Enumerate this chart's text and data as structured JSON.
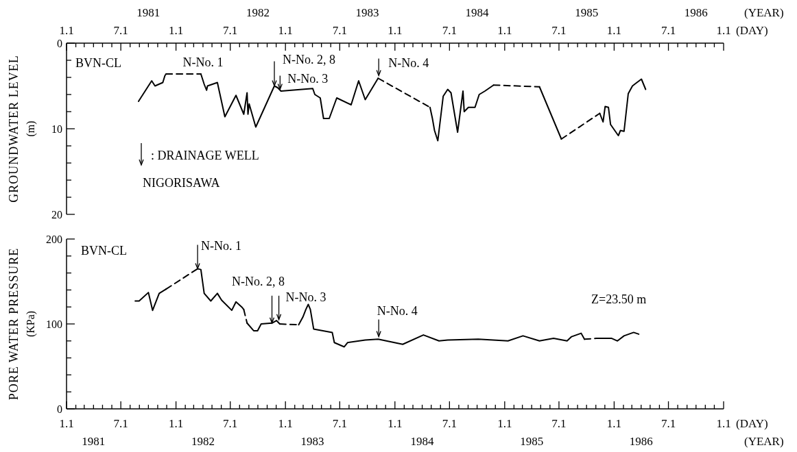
{
  "chart_data": [
    {
      "type": "line",
      "ylabel": "GROUNDWATER LEVEL (m)",
      "xlabel": "(DAY)",
      "x2label": "(YEAR)",
      "xlim": [
        "1981-01-01",
        "1987-01-01"
      ],
      "ylim": [
        20,
        0
      ],
      "yticks": [
        0,
        {
          "value": 2,
          "label": null
        },
        {
          "value": 4,
          "label": null
        },
        {
          "value": 6,
          "label": null
        },
        {
          "value": 8,
          "label": null
        },
        10,
        {
          "value": 12,
          "label": null
        },
        {
          "value": 14,
          "label": null
        },
        {
          "value": 16,
          "label": null
        },
        {
          "value": 18,
          "label": null
        },
        20
      ],
      "xticks": [
        {
          "value": "1981-01-01",
          "label": "1.1"
        },
        {
          "value": "1981-02-01",
          "label": null
        },
        {
          "value": "1981-03-01",
          "label": null
        },
        {
          "value": "1981-04-01",
          "label": null
        },
        {
          "value": "1981-05-01",
          "label": null
        },
        {
          "value": "1981-06-01",
          "label": null
        },
        {
          "value": "1981-07-01",
          "label": "7.1"
        },
        {
          "value": "1981-08-01",
          "label": null
        },
        {
          "value": "1981-09-01",
          "label": null
        },
        {
          "value": "1981-10-01",
          "label": null
        },
        {
          "value": "1981-11-01",
          "label": null
        },
        {
          "value": "1981-12-01",
          "label": null
        },
        {
          "value": "1982-01-01",
          "label": "1.1"
        },
        {
          "value": "1982-02-01",
          "label": null
        },
        {
          "value": "1982-03-01",
          "label": null
        },
        {
          "value": "1982-04-01",
          "label": null
        },
        {
          "value": "1982-05-01",
          "label": null
        },
        {
          "value": "1982-06-01",
          "label": null
        },
        {
          "value": "1982-07-01",
          "label": "7.1"
        },
        {
          "value": "1982-08-01",
          "label": null
        },
        {
          "value": "1982-09-01",
          "label": null
        },
        {
          "value": "1982-10-01",
          "label": null
        },
        {
          "value": "1982-11-01",
          "label": null
        },
        {
          "value": "1982-12-01",
          "label": null
        },
        {
          "value": "1983-01-01",
          "label": "1.1"
        },
        {
          "value": "1983-02-01",
          "label": null
        },
        {
          "value": "1983-03-01",
          "label": null
        },
        {
          "value": "1983-04-01",
          "label": null
        },
        {
          "value": "1983-05-01",
          "label": null
        },
        {
          "value": "1983-06-01",
          "label": null
        },
        {
          "value": "1983-07-01",
          "label": "7.1"
        },
        {
          "value": "1983-08-01",
          "label": null
        },
        {
          "value": "1983-09-01",
          "label": null
        },
        {
          "value": "1983-10-01",
          "label": null
        },
        {
          "value": "1983-11-01",
          "label": null
        },
        {
          "value": "1983-12-01",
          "label": null
        },
        {
          "value": "1984-01-01",
          "label": "1.1"
        },
        {
          "value": "1984-02-01",
          "label": null
        },
        {
          "value": "1984-03-01",
          "label": null
        },
        {
          "value": "1984-04-01",
          "label": null
        },
        {
          "value": "1984-05-01",
          "label": null
        },
        {
          "value": "1984-06-01",
          "label": null
        },
        {
          "value": "1984-07-01",
          "label": "7.1"
        },
        {
          "value": "1984-08-01",
          "label": null
        },
        {
          "value": "1984-09-01",
          "label": null
        },
        {
          "value": "1984-10-01",
          "label": null
        },
        {
          "value": "1984-11-01",
          "label": null
        },
        {
          "value": "1984-12-01",
          "label": null
        },
        {
          "value": "1985-01-01",
          "label": "1.1"
        },
        {
          "value": "1985-02-01",
          "label": null
        },
        {
          "value": "1985-03-01",
          "label": null
        },
        {
          "value": "1985-04-01",
          "label": null
        },
        {
          "value": "1985-05-01",
          "label": null
        },
        {
          "value": "1985-06-01",
          "label": null
        },
        {
          "value": "1985-07-01",
          "label": "7.1"
        },
        {
          "value": "1985-08-01",
          "label": null
        },
        {
          "value": "1985-09-01",
          "label": null
        },
        {
          "value": "1985-10-01",
          "label": null
        },
        {
          "value": "1985-11-01",
          "label": null
        },
        {
          "value": "1985-12-01",
          "label": null
        },
        {
          "value": "1986-01-01",
          "label": "1.1"
        },
        {
          "value": "1986-02-01",
          "label": null
        },
        {
          "value": "1986-03-01",
          "label": null
        },
        {
          "value": "1986-04-01",
          "label": null
        },
        {
          "value": "1986-05-01",
          "label": null
        },
        {
          "value": "1986-06-01",
          "label": null
        },
        {
          "value": "1986-07-01",
          "label": "7.1"
        },
        {
          "value": "1986-08-01",
          "label": null
        },
        {
          "value": "1986-09-01",
          "label": null
        },
        {
          "value": "1986-10-01",
          "label": null
        },
        {
          "value": "1986-11-01",
          "label": null
        },
        {
          "value": "1986-12-01",
          "label": null
        },
        {
          "value": "1987-01-01",
          "label": "1.1"
        }
      ],
      "x2lim": [
        "1981-01-01",
        "1987-01-01"
      ],
      "x2ticks": [
        {
          "value": "1981-10-01",
          "label": "1981"
        },
        {
          "value": "1982-10-01",
          "label": "1982"
        },
        {
          "value": "1983-10-01",
          "label": "1983"
        },
        {
          "value": "1984-10-01",
          "label": "1984"
        },
        {
          "value": "1985-10-01",
          "label": "1985"
        },
        {
          "value": "1986-10-01",
          "label": "1986"
        }
      ],
      "series": [
        {
          "color": "#000000",
          "line_style": "solid",
          "x": [
            "1981-08-29",
            "1981-10-12",
            "1981-10-23",
            "1981-11-18",
            "1981-11-25",
            "1981-11-29"
          ],
          "values": [
            6.8,
            4.4,
            5.0,
            4.6,
            3.8,
            3.6
          ]
        },
        {
          "color": "#000000",
          "line_style": "dashed",
          "x": [
            "1981-11-29",
            "1982-03-25"
          ],
          "values": [
            3.6,
            3.6
          ]
        },
        {
          "color": "#000000",
          "line_style": "solid",
          "x": [
            "1982-03-25",
            "1982-04-05",
            "1982-04-13",
            "1982-04-16",
            "1982-05-19",
            "1982-06-13",
            "1982-07-20",
            "1982-08-15",
            "1982-08-26",
            "1982-08-29",
            "1982-09-02",
            "1982-09-24",
            "1982-11-25",
            "1982-12-06",
            "1982-12-17",
            "1983-04-02",
            "1983-04-09",
            "1983-04-27",
            "1983-05-08",
            "1983-05-27",
            "1983-06-21",
            "1983-08-08",
            "1983-09-02",
            "1983-09-24",
            "1983-11-06"
          ],
          "values": [
            3.6,
            4.8,
            5.5,
            5.0,
            4.6,
            8.6,
            6.1,
            8.3,
            5.8,
            8.3,
            7.1,
            9.8,
            5.0,
            5.2,
            5.6,
            5.3,
            6.0,
            6.4,
            8.8,
            8.8,
            6.4,
            7.2,
            4.4,
            6.6,
            4.1
          ]
        },
        {
          "color": "#000000",
          "line_style": "dashed",
          "x": [
            "1983-11-06",
            "1984-04-27"
          ],
          "values": [
            4.1,
            7.5
          ]
        },
        {
          "color": "#000000",
          "line_style": "solid",
          "x": [
            "1984-04-27",
            "1984-05-05",
            "1984-05-12",
            "1984-05-23",
            "1984-06-10",
            "1984-06-25",
            "1984-07-06",
            "1984-07-28",
            "1984-08-15",
            "1984-08-19",
            "1984-09-02",
            "1984-09-24",
            "1984-10-08",
            "1984-10-27",
            "1984-11-25"
          ],
          "values": [
            7.5,
            8.8,
            10.2,
            11.4,
            6.2,
            5.4,
            5.8,
            10.4,
            5.6,
            8.0,
            7.5,
            7.5,
            6.0,
            5.6,
            4.9
          ]
        },
        {
          "color": "#000000",
          "line_style": "dashed",
          "x": [
            "1984-11-25",
            "1985-04-27"
          ],
          "values": [
            4.9,
            5.1
          ]
        },
        {
          "color": "#000000",
          "line_style": "solid",
          "x": [
            "1985-04-27",
            "1985-07-09"
          ],
          "values": [
            5.1,
            11.2
          ]
        },
        {
          "color": "#000000",
          "line_style": "dashed",
          "x": [
            "1985-07-09",
            "1985-11-14"
          ],
          "values": [
            11.2,
            8.2
          ]
        },
        {
          "color": "#000000",
          "line_style": "solid",
          "x": [
            "1985-11-14",
            "1985-11-25",
            "1985-12-02",
            "1985-12-13",
            "1985-12-20",
            "1986-01-15",
            "1986-01-22",
            "1986-02-03",
            "1986-02-17",
            "1986-03-03",
            "1986-03-14",
            "1986-04-02",
            "1986-04-16"
          ],
          "values": [
            8.2,
            9.2,
            7.4,
            7.5,
            9.5,
            10.8,
            10.2,
            10.3,
            5.9,
            5.0,
            4.7,
            4.2,
            5.4
          ]
        }
      ],
      "annotations": [
        "BVN-CL",
        ": DRAINAGE WELL",
        "NIGORISAWA",
        {
          "text": "N-No. 1",
          "x": "1982-04-01"
        },
        {
          "text": "N-No. 2, 8",
          "x": "1982-11-25",
          "y": 5.0
        },
        {
          "text": "N-No. 3",
          "x": "1982-12-14",
          "y": 5.4
        },
        {
          "text": "N-No. 4",
          "x": "1983-11-08",
          "y": 3.8
        }
      ]
    },
    {
      "type": "line",
      "ylabel": "PORE WATER PRESSURE (KPa)",
      "xlabel": "(DAY)",
      "x2label": "(YEAR)",
      "xlim": [
        "1981-01-01",
        "1987-01-01"
      ],
      "ylim": [
        0,
        200
      ],
      "yticks": [
        0,
        {
          "value": 20,
          "label": null
        },
        {
          "value": 40,
          "label": null
        },
        {
          "value": 60,
          "label": null
        },
        {
          "value": 80,
          "label": null
        },
        100,
        {
          "value": 120,
          "label": null
        },
        {
          "value": 140,
          "label": null
        },
        {
          "value": 160,
          "label": null
        },
        {
          "value": 180,
          "label": null
        },
        200
      ],
      "xticks": [
        {
          "value": "1981-01-01",
          "label": "1.1"
        },
        {
          "value": "1981-02-01",
          "label": null
        },
        {
          "value": "1981-03-01",
          "label": null
        },
        {
          "value": "1981-04-01",
          "label": null
        },
        {
          "value": "1981-05-01",
          "label": null
        },
        {
          "value": "1981-06-01",
          "label": null
        },
        {
          "value": "1981-07-01",
          "label": "7.1"
        },
        {
          "value": "1981-08-01",
          "label": null
        },
        {
          "value": "1981-09-01",
          "label": null
        },
        {
          "value": "1981-10-01",
          "label": null
        },
        {
          "value": "1981-11-01",
          "label": null
        },
        {
          "value": "1981-12-01",
          "label": null
        },
        {
          "value": "1982-01-01",
          "label": "1.1"
        },
        {
          "value": "1982-02-01",
          "label": null
        },
        {
          "value": "1982-03-01",
          "label": null
        },
        {
          "value": "1982-04-01",
          "label": null
        },
        {
          "value": "1982-05-01",
          "label": null
        },
        {
          "value": "1982-06-01",
          "label": null
        },
        {
          "value": "1982-07-01",
          "label": "7.1"
        },
        {
          "value": "1982-08-01",
          "label": null
        },
        {
          "value": "1982-09-01",
          "label": null
        },
        {
          "value": "1982-10-01",
          "label": null
        },
        {
          "value": "1982-11-01",
          "label": null
        },
        {
          "value": "1982-12-01",
          "label": null
        },
        {
          "value": "1983-01-01",
          "label": "1.1"
        },
        {
          "value": "1983-02-01",
          "label": null
        },
        {
          "value": "1983-03-01",
          "label": null
        },
        {
          "value": "1983-04-01",
          "label": null
        },
        {
          "value": "1983-05-01",
          "label": null
        },
        {
          "value": "1983-06-01",
          "label": null
        },
        {
          "value": "1983-07-01",
          "label": "7.1"
        },
        {
          "value": "1983-08-01",
          "label": null
        },
        {
          "value": "1983-09-01",
          "label": null
        },
        {
          "value": "1983-10-01",
          "label": null
        },
        {
          "value": "1983-11-01",
          "label": null
        },
        {
          "value": "1983-12-01",
          "label": null
        },
        {
          "value": "1984-01-01",
          "label": "1.1"
        },
        {
          "value": "1984-02-01",
          "label": null
        },
        {
          "value": "1984-03-01",
          "label": null
        },
        {
          "value": "1984-04-01",
          "label": null
        },
        {
          "value": "1984-05-01",
          "label": null
        },
        {
          "value": "1984-06-01",
          "label": null
        },
        {
          "value": "1984-07-01",
          "label": "7.1"
        },
        {
          "value": "1984-08-01",
          "label": null
        },
        {
          "value": "1984-09-01",
          "label": null
        },
        {
          "value": "1984-10-01",
          "label": null
        },
        {
          "value": "1984-11-01",
          "label": null
        },
        {
          "value": "1984-12-01",
          "label": null
        },
        {
          "value": "1985-01-01",
          "label": "1.1"
        },
        {
          "value": "1985-02-01",
          "label": null
        },
        {
          "value": "1985-03-01",
          "label": null
        },
        {
          "value": "1985-04-01",
          "label": null
        },
        {
          "value": "1985-05-01",
          "label": null
        },
        {
          "value": "1985-06-01",
          "label": null
        },
        {
          "value": "1985-07-01",
          "label": "7.1"
        },
        {
          "value": "1985-08-01",
          "label": null
        },
        {
          "value": "1985-09-01",
          "label": null
        },
        {
          "value": "1985-10-01",
          "label": null
        },
        {
          "value": "1985-11-01",
          "label": null
        },
        {
          "value": "1985-12-01",
          "label": null
        },
        {
          "value": "1986-01-01",
          "label": "1.1"
        },
        {
          "value": "1986-02-01",
          "label": null
        },
        {
          "value": "1986-03-01",
          "label": null
        },
        {
          "value": "1986-04-01",
          "label": null
        },
        {
          "value": "1986-05-01",
          "label": null
        },
        {
          "value": "1986-06-01",
          "label": null
        },
        {
          "value": "1986-07-01",
          "label": "7.1"
        },
        {
          "value": "1986-08-01",
          "label": null
        },
        {
          "value": "1986-09-01",
          "label": null
        },
        {
          "value": "1986-10-01",
          "label": null
        },
        {
          "value": "1986-11-01",
          "label": null
        },
        {
          "value": "1986-12-01",
          "label": null
        },
        {
          "value": "1987-01-01",
          "label": "1.1"
        }
      ],
      "x2lim": [
        "1981-01-01",
        "1987-01-01"
      ],
      "x2ticks": [
        {
          "value": "1981-04-01",
          "label": "1981"
        },
        {
          "value": "1982-04-01",
          "label": "1982"
        },
        {
          "value": "1983-04-01",
          "label": "1983"
        },
        {
          "value": "1984-04-01",
          "label": "1984"
        },
        {
          "value": "1985-04-01",
          "label": "1985"
        },
        {
          "value": "1986-04-01",
          "label": "1986"
        }
      ],
      "series": [
        {
          "color": "#000000",
          "line_style": "solid",
          "x": [
            "1981-08-18",
            "1981-08-31",
            "1981-10-01",
            "1981-10-15",
            "1981-11-06",
            "1981-11-29"
          ],
          "values": [
            127,
            127,
            137,
            116,
            136,
            141
          ]
        },
        {
          "color": "#000000",
          "line_style": "dashed",
          "x": [
            "1981-11-29",
            "1982-03-14"
          ],
          "values": [
            141,
            165
          ]
        },
        {
          "color": "#000000",
          "line_style": "solid",
          "x": [
            "1982-03-14",
            "1982-03-25",
            "1982-04-05",
            "1982-04-27",
            "1982-05-19",
            "1982-06-02",
            "1982-07-06",
            "1982-07-20",
            "1982-08-08",
            "1982-08-15"
          ],
          "values": [
            165,
            164,
            136,
            127,
            136,
            128,
            116,
            126,
            120,
            117
          ]
        },
        {
          "color": "#000000",
          "line_style": "dashed",
          "x": [
            "1982-08-15",
            "1982-08-26"
          ],
          "values": [
            117,
            101
          ]
        },
        {
          "color": "#000000",
          "line_style": "solid",
          "x": [
            "1982-08-26",
            "1982-09-17",
            "1982-09-30",
            "1982-10-12",
            "1982-11-17",
            "1982-12-02",
            "1982-12-13"
          ],
          "values": [
            101,
            92,
            92,
            100,
            101,
            104,
            100
          ]
        },
        {
          "color": "#000000",
          "line_style": "dashed",
          "x": [
            "1982-12-13",
            "1983-02-14"
          ],
          "values": [
            100,
            99
          ]
        },
        {
          "color": "#000000",
          "line_style": "solid",
          "x": [
            "1983-02-14",
            "1983-02-28",
            "1983-03-10",
            "1983-03-18",
            "1983-03-25",
            "1983-04-05",
            "1983-06-06",
            "1983-06-13",
            "1983-07-16",
            "1983-07-27",
            "1983-09-24",
            "1983-11-06",
            "1984-01-27",
            "1984-04-05",
            "1984-05-27",
            "1984-06-25",
            "1984-10-05",
            "1985-01-12",
            "1985-03-03",
            "1985-04-27",
            "1985-06-13",
            "1985-07-28",
            "1985-08-12",
            "1985-09-13",
            "1985-09-24"
          ],
          "values": [
            99,
            108,
            117,
            123,
            117,
            94,
            90,
            78,
            73,
            78,
            81,
            82,
            76,
            87,
            80,
            81,
            82,
            80,
            86,
            80,
            83,
            80,
            85,
            89,
            82
          ]
        },
        {
          "color": "#000000",
          "line_style": "dashed",
          "x": [
            "1985-09-24",
            "1985-11-03"
          ],
          "values": [
            82,
            83
          ]
        },
        {
          "color": "#000000",
          "line_style": "solid",
          "x": [
            "1985-11-03",
            "1985-12-24",
            "1986-01-12",
            "1986-02-03",
            "1986-03-07",
            "1986-03-24"
          ],
          "values": [
            83,
            83,
            80,
            86,
            90,
            88
          ]
        }
      ],
      "annotations": [
        "BVN-CL",
        "Z=23.50 m",
        {
          "text": "N-No. 1",
          "x": "1982-03-14",
          "y": 165
        },
        {
          "text": "N-No. 2, 8",
          "x": "1982-11-17",
          "y": 101
        },
        {
          "text": "N-No. 3",
          "x": "1982-12-10",
          "y": 105
        },
        {
          "text": "N-No. 4",
          "x": "1983-11-08",
          "y": 85
        }
      ]
    }
  ]
}
